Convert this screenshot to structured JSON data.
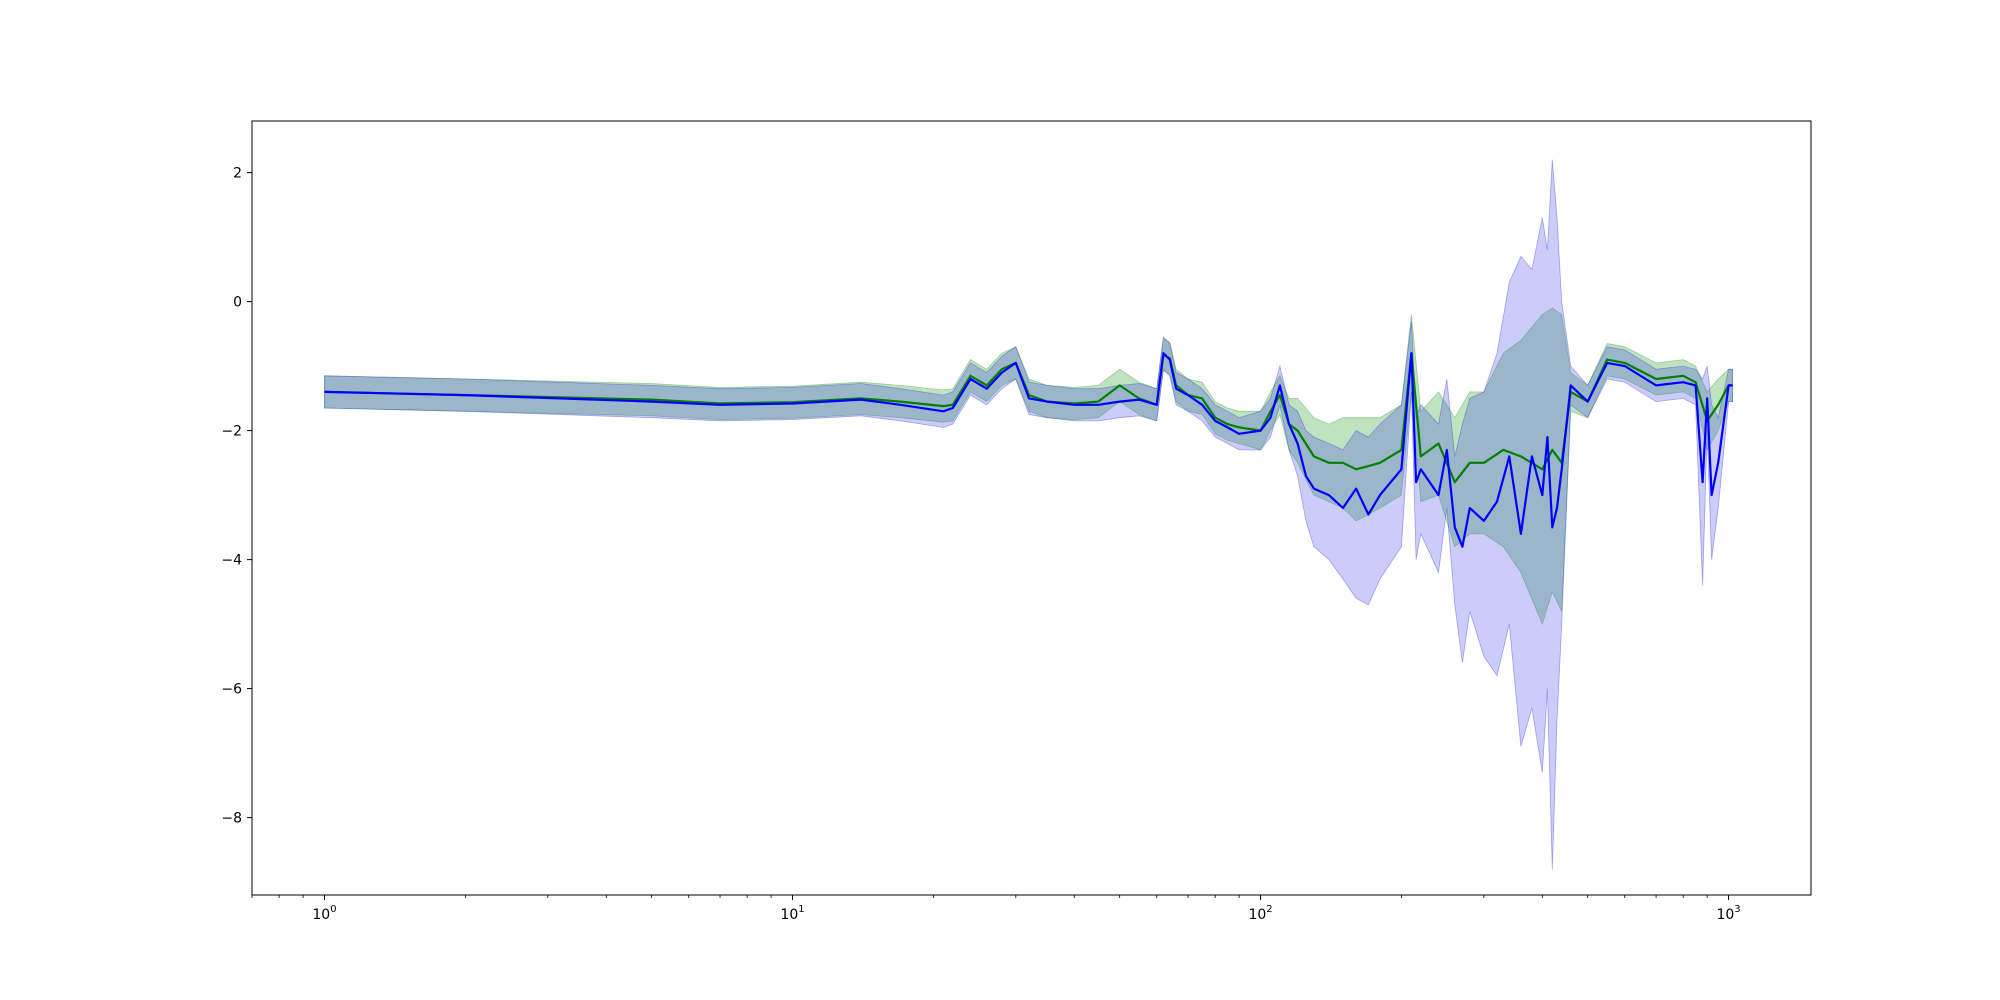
{
  "chart_data": {
    "type": "line",
    "title": "",
    "xlabel": "",
    "ylabel": "",
    "xscale": "log",
    "xlim": [
      0.7,
      1500
    ],
    "ylim": [
      -9.2,
      2.8
    ],
    "grid": false,
    "legend": "none",
    "x_ticks": [
      {
        "value": 1,
        "base": "10",
        "exp": "0"
      },
      {
        "value": 10,
        "base": "10",
        "exp": "1"
      },
      {
        "value": 100,
        "base": "10",
        "exp": "2"
      },
      {
        "value": 1000,
        "base": "10",
        "exp": "3"
      }
    ],
    "y_ticks": [
      {
        "value": 2,
        "label": "2"
      },
      {
        "value": 0,
        "label": "0"
      },
      {
        "value": -2,
        "label": "−2"
      },
      {
        "value": -4,
        "label": "−4"
      },
      {
        "value": -6,
        "label": "−6"
      },
      {
        "value": -8,
        "label": "−8"
      }
    ],
    "series": [
      {
        "color": "#008000",
        "band_color": "#2ca02c",
        "band_opacity": 0.3,
        "x": [
          1,
          2,
          5,
          7,
          10,
          14,
          17,
          21,
          22,
          24,
          26,
          28,
          30,
          32,
          35,
          40,
          45,
          50,
          55,
          60,
          62,
          64,
          66,
          70,
          75,
          80,
          85,
          90,
          100,
          105,
          110,
          115,
          120,
          130,
          140,
          150,
          160,
          170,
          180,
          200,
          210,
          220,
          240,
          260,
          280,
          300,
          330,
          360,
          400,
          420,
          440,
          460,
          500,
          550,
          600,
          700,
          800,
          850,
          900,
          950,
          1000,
          1020
        ],
        "y": [
          -1.4,
          -1.45,
          -1.52,
          -1.58,
          -1.56,
          -1.5,
          -1.55,
          -1.62,
          -1.6,
          -1.15,
          -1.3,
          -1.05,
          -0.95,
          -1.45,
          -1.55,
          -1.58,
          -1.55,
          -1.3,
          -1.5,
          -1.6,
          -0.82,
          -0.88,
          -1.3,
          -1.45,
          -1.5,
          -1.8,
          -1.9,
          -1.95,
          -2.0,
          -1.7,
          -1.45,
          -1.9,
          -2.0,
          -2.4,
          -2.5,
          -2.5,
          -2.6,
          -2.55,
          -2.5,
          -2.3,
          -0.8,
          -2.4,
          -2.2,
          -2.8,
          -2.5,
          -2.5,
          -2.3,
          -2.4,
          -2.6,
          -2.3,
          -2.5,
          -1.4,
          -1.55,
          -0.9,
          -0.95,
          -1.2,
          -1.15,
          -1.25,
          -1.85,
          -1.6,
          -1.3,
          -1.3
        ],
        "lower": [
          -1.65,
          -1.7,
          -1.77,
          -1.83,
          -1.81,
          -1.75,
          -1.8,
          -1.87,
          -1.85,
          -1.4,
          -1.55,
          -1.3,
          -1.2,
          -1.7,
          -1.8,
          -1.83,
          -1.8,
          -1.55,
          -1.75,
          -1.85,
          -1.07,
          -1.13,
          -1.55,
          -1.7,
          -1.75,
          -2.05,
          -2.15,
          -2.2,
          -2.3,
          -2.0,
          -1.75,
          -2.3,
          -2.5,
          -3.0,
          -3.1,
          -3.2,
          -3.4,
          -3.3,
          -3.2,
          -3.0,
          -1.4,
          -3.1,
          -3.0,
          -3.8,
          -3.6,
          -3.6,
          -3.8,
          -4.2,
          -5.0,
          -4.5,
          -4.8,
          -1.7,
          -1.8,
          -1.15,
          -1.2,
          -1.45,
          -1.4,
          -1.5,
          -2.3,
          -2.0,
          -1.55,
          -1.55
        ],
        "upper": [
          -1.15,
          -1.2,
          -1.27,
          -1.33,
          -1.31,
          -1.25,
          -1.3,
          -1.37,
          -1.35,
          -0.9,
          -1.05,
          -0.8,
          -0.7,
          -1.2,
          -1.3,
          -1.33,
          -1.3,
          -1.05,
          -1.25,
          -1.35,
          -0.57,
          -0.63,
          -1.05,
          -1.2,
          -1.25,
          -1.55,
          -1.65,
          -1.7,
          -1.7,
          -1.4,
          -1.15,
          -1.5,
          -1.5,
          -1.8,
          -1.9,
          -1.8,
          -1.8,
          -1.8,
          -1.8,
          -1.6,
          -0.2,
          -1.7,
          -1.4,
          -1.8,
          -1.4,
          -1.4,
          -0.8,
          -0.6,
          -0.2,
          -0.1,
          -0.2,
          -1.1,
          -1.3,
          -0.65,
          -0.7,
          -0.95,
          -0.9,
          -1.0,
          -1.4,
          -1.2,
          -1.05,
          -1.05
        ]
      },
      {
        "color": "#0000ff",
        "band_color": "#3232e6",
        "band_opacity": 0.25,
        "x": [
          1,
          2,
          5,
          7,
          10,
          14,
          17,
          21,
          22,
          24,
          26,
          28,
          30,
          32,
          35,
          40,
          45,
          50,
          55,
          60,
          62,
          64,
          66,
          70,
          75,
          80,
          85,
          90,
          100,
          105,
          110,
          115,
          120,
          125,
          130,
          140,
          150,
          160,
          170,
          180,
          200,
          210,
          215,
          220,
          240,
          250,
          260,
          270,
          280,
          300,
          320,
          340,
          360,
          380,
          400,
          410,
          420,
          430,
          440,
          460,
          500,
          550,
          600,
          700,
          800,
          850,
          880,
          900,
          920,
          950,
          1000,
          1020
        ],
        "y": [
          -1.4,
          -1.45,
          -1.55,
          -1.6,
          -1.58,
          -1.52,
          -1.6,
          -1.7,
          -1.65,
          -1.2,
          -1.35,
          -1.1,
          -0.95,
          -1.5,
          -1.55,
          -1.6,
          -1.6,
          -1.55,
          -1.52,
          -1.6,
          -0.8,
          -0.9,
          -1.35,
          -1.45,
          -1.6,
          -1.85,
          -1.95,
          -2.05,
          -2.0,
          -1.8,
          -1.3,
          -1.9,
          -2.2,
          -2.7,
          -2.9,
          -3.0,
          -3.2,
          -2.9,
          -3.3,
          -3.0,
          -2.6,
          -0.8,
          -2.8,
          -2.6,
          -3.0,
          -2.3,
          -3.5,
          -3.8,
          -3.2,
          -3.4,
          -3.1,
          -2.4,
          -3.6,
          -2.4,
          -3.0,
          -2.1,
          -3.5,
          -3.2,
          -2.6,
          -1.3,
          -1.55,
          -0.95,
          -1.0,
          -1.3,
          -1.25,
          -1.3,
          -2.8,
          -1.5,
          -3.0,
          -2.5,
          -1.3,
          -1.3
        ],
        "lower": [
          -1.65,
          -1.7,
          -1.8,
          -1.85,
          -1.83,
          -1.77,
          -1.85,
          -1.95,
          -1.9,
          -1.45,
          -1.6,
          -1.35,
          -1.2,
          -1.75,
          -1.8,
          -1.85,
          -1.85,
          -1.8,
          -1.77,
          -1.85,
          -1.05,
          -1.15,
          -1.6,
          -1.7,
          -1.85,
          -2.1,
          -2.2,
          -2.3,
          -2.3,
          -2.1,
          -1.6,
          -2.3,
          -2.7,
          -3.4,
          -3.8,
          -4.0,
          -4.3,
          -4.6,
          -4.7,
          -4.3,
          -3.8,
          -1.4,
          -4.0,
          -3.6,
          -4.2,
          -3.2,
          -4.7,
          -5.6,
          -4.8,
          -5.5,
          -5.8,
          -5.0,
          -6.9,
          -6.3,
          -7.3,
          -6.0,
          -8.8,
          -6.5,
          -5.0,
          -1.6,
          -1.8,
          -1.2,
          -1.25,
          -1.55,
          -1.5,
          -1.6,
          -4.4,
          -2.0,
          -4.0,
          -3.2,
          -1.55,
          -1.55
        ],
        "upper": [
          -1.15,
          -1.2,
          -1.3,
          -1.35,
          -1.33,
          -1.27,
          -1.35,
          -1.45,
          -1.4,
          -0.95,
          -1.1,
          -0.85,
          -0.7,
          -1.25,
          -1.3,
          -1.35,
          -1.35,
          -1.3,
          -1.27,
          -1.35,
          -0.55,
          -0.65,
          -1.1,
          -1.2,
          -1.35,
          -1.6,
          -1.7,
          -1.8,
          -1.7,
          -1.5,
          -1.0,
          -1.6,
          -1.7,
          -2.0,
          -2.1,
          -2.2,
          -2.3,
          -2.0,
          -2.1,
          -1.9,
          -1.6,
          -0.3,
          -1.8,
          -1.6,
          -1.9,
          -1.2,
          -2.4,
          -1.9,
          -1.5,
          -1.4,
          -0.8,
          0.3,
          0.7,
          0.5,
          1.3,
          0.8,
          2.2,
          1.3,
          0.0,
          -1.0,
          -1.3,
          -0.7,
          -0.75,
          -1.05,
          -1.0,
          -1.05,
          -1.2,
          -1.0,
          -1.6,
          -1.8,
          -1.05,
          -1.05
        ]
      }
    ]
  }
}
